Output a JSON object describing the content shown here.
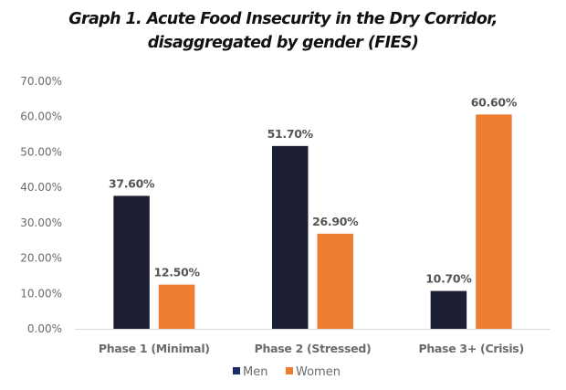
{
  "chart_data": {
    "type": "bar",
    "title": "Graph 1. Acute Food Insecurity in the Dry Corridor, disaggregated by gender (FIES)",
    "title_lines": [
      "Graph 1. Acute Food Insecurity in the Dry Corridor,",
      "disaggregated by gender (FIES)"
    ],
    "categories": [
      "Phase 1 (Minimal)",
      "Phase 2 (Stressed)",
      "Phase 3+ (Crisis)"
    ],
    "series": [
      {
        "name": "Men",
        "color": "#1c1f33",
        "legend_color": "#1b2a6b",
        "values": [
          37.6,
          51.7,
          10.7
        ],
        "labels": [
          "37.60%",
          "51.70%",
          "10.70%"
        ]
      },
      {
        "name": "Women",
        "color": "#ed7d31",
        "legend_color": "#ed7d31",
        "values": [
          12.5,
          26.9,
          60.6
        ],
        "labels": [
          "12.50%",
          "26.90%",
          "60.60%"
        ]
      }
    ],
    "xlabel": "",
    "ylabel": "",
    "ylim": [
      0,
      70
    ],
    "yticks": [
      0,
      10,
      20,
      30,
      40,
      50,
      60,
      70
    ],
    "ytick_labels": [
      "0.00%",
      "10.00%",
      "20.00%",
      "30.00%",
      "40.00%",
      "50.00%",
      "60.00%",
      "70.00%"
    ],
    "grid": false,
    "legend_position": "bottom-center"
  }
}
